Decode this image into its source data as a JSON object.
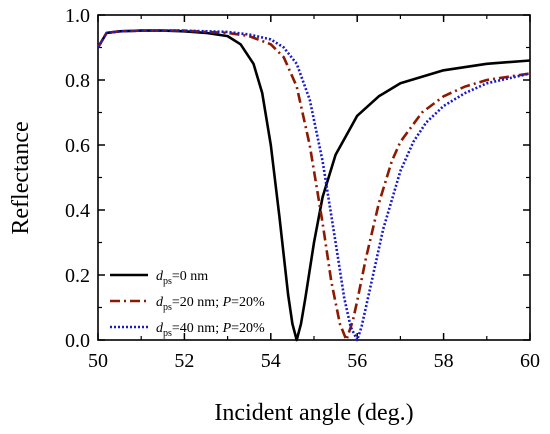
{
  "chart_data": {
    "type": "line",
    "xlabel": "Incident angle (deg.)",
    "ylabel": "Reflectance",
    "xlim": [
      50,
      60
    ],
    "ylim": [
      0.0,
      1.0
    ],
    "x_ticks": [
      "50",
      "52",
      "54",
      "56",
      "58",
      "60"
    ],
    "y_ticks": [
      "0.0",
      "0.2",
      "0.4",
      "0.6",
      "0.8",
      "1.0"
    ],
    "grid": false,
    "legend_position": "bottom-left",
    "series": [
      {
        "name": "dps=0 nm",
        "legend_parts": [
          "d",
          "ps",
          "=0 nm"
        ],
        "color": "#000000",
        "style": "solid",
        "x": [
          50.0,
          50.2,
          50.5,
          51.0,
          51.5,
          52.0,
          52.5,
          53.0,
          53.3,
          53.6,
          53.8,
          54.0,
          54.2,
          54.4,
          54.5,
          54.6,
          54.7,
          54.8,
          55.0,
          55.2,
          55.5,
          56.0,
          56.5,
          57.0,
          58.0,
          59.0,
          60.0
        ],
        "y": [
          0.9,
          0.945,
          0.95,
          0.952,
          0.952,
          0.95,
          0.945,
          0.935,
          0.91,
          0.85,
          0.76,
          0.6,
          0.38,
          0.14,
          0.05,
          0.0,
          0.05,
          0.13,
          0.3,
          0.44,
          0.57,
          0.69,
          0.75,
          0.79,
          0.83,
          0.85,
          0.86
        ]
      },
      {
        "name": "dps=20 nm; P=20%",
        "legend_parts": [
          "d",
          "ps",
          "=20 nm; ",
          "P",
          "=20%"
        ],
        "color": "#8b1a00",
        "style": "dashdot",
        "x": [
          50.0,
          50.2,
          50.5,
          51.0,
          52.0,
          52.5,
          53.0,
          53.5,
          54.0,
          54.3,
          54.6,
          54.9,
          55.2,
          55.4,
          55.6,
          55.75,
          55.9,
          56.0,
          56.2,
          56.5,
          56.8,
          57.0,
          57.5,
          58.0,
          58.5,
          59.0,
          60.0
        ],
        "y": [
          0.9,
          0.945,
          0.95,
          0.952,
          0.952,
          0.948,
          0.945,
          0.935,
          0.91,
          0.87,
          0.78,
          0.6,
          0.36,
          0.18,
          0.05,
          0.0,
          0.06,
          0.12,
          0.25,
          0.42,
          0.55,
          0.61,
          0.7,
          0.75,
          0.78,
          0.8,
          0.82
        ]
      },
      {
        "name": "dps=40 nm; P=20%",
        "legend_parts": [
          "d",
          "ps",
          "=40 nm; ",
          "P",
          "=20%"
        ],
        "color": "#1a1acc",
        "style": "dotted",
        "x": [
          50.0,
          50.2,
          50.5,
          51.0,
          52.0,
          52.5,
          53.0,
          53.5,
          54.0,
          54.3,
          54.6,
          54.9,
          55.2,
          55.5,
          55.7,
          55.85,
          56.0,
          56.1,
          56.3,
          56.6,
          57.0,
          57.3,
          57.6,
          58.0,
          58.5,
          59.0,
          60.0
        ],
        "y": [
          0.9,
          0.945,
          0.95,
          0.952,
          0.952,
          0.95,
          0.948,
          0.94,
          0.925,
          0.9,
          0.85,
          0.74,
          0.55,
          0.3,
          0.13,
          0.04,
          0.0,
          0.04,
          0.16,
          0.34,
          0.52,
          0.61,
          0.67,
          0.72,
          0.76,
          0.79,
          0.82
        ]
      }
    ]
  }
}
